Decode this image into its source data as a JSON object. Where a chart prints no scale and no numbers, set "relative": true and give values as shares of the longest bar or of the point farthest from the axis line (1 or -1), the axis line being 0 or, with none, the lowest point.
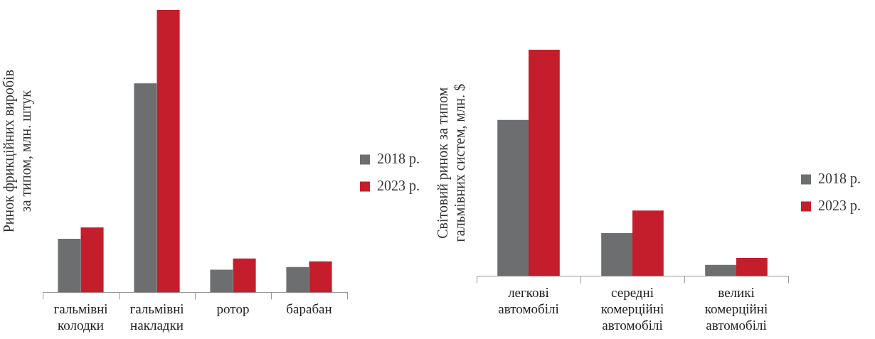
{
  "chart_data": [
    {
      "type": "bar",
      "relative": true,
      "ylabel": "Ринок фрикційних виробів\nза типом, млн. штук",
      "legend": "right",
      "categories": [
        "гальмівні\nколодки",
        "гальмівні\nнакладки",
        "ротор",
        "барабан"
      ],
      "series": [
        {
          "name": "2018 р.",
          "color": "#6d6e70",
          "values": [
            0.19,
            0.74,
            0.08,
            0.09
          ]
        },
        {
          "name": "2023 р.",
          "color": "#c41e2c",
          "values": [
            0.23,
            1,
            0.12,
            0.11
          ]
        }
      ]
    },
    {
      "type": "bar",
      "relative": true,
      "ylabel": "Світовий ринок за типом\nгальмівних систем, млн. $",
      "legend": "right",
      "categories": [
        "легкові\nавтомобілі",
        "середні\nкомерційні\nавтомобілі",
        "великі\nкомерційні\nавтомобілі"
      ],
      "series": [
        {
          "name": "2018 р.",
          "color": "#6d6e70",
          "values": [
            0.69,
            0.19,
            0.05
          ]
        },
        {
          "name": "2023 р.",
          "color": "#c41e2c",
          "values": [
            1,
            0.29,
            0.08
          ]
        }
      ]
    }
  ]
}
